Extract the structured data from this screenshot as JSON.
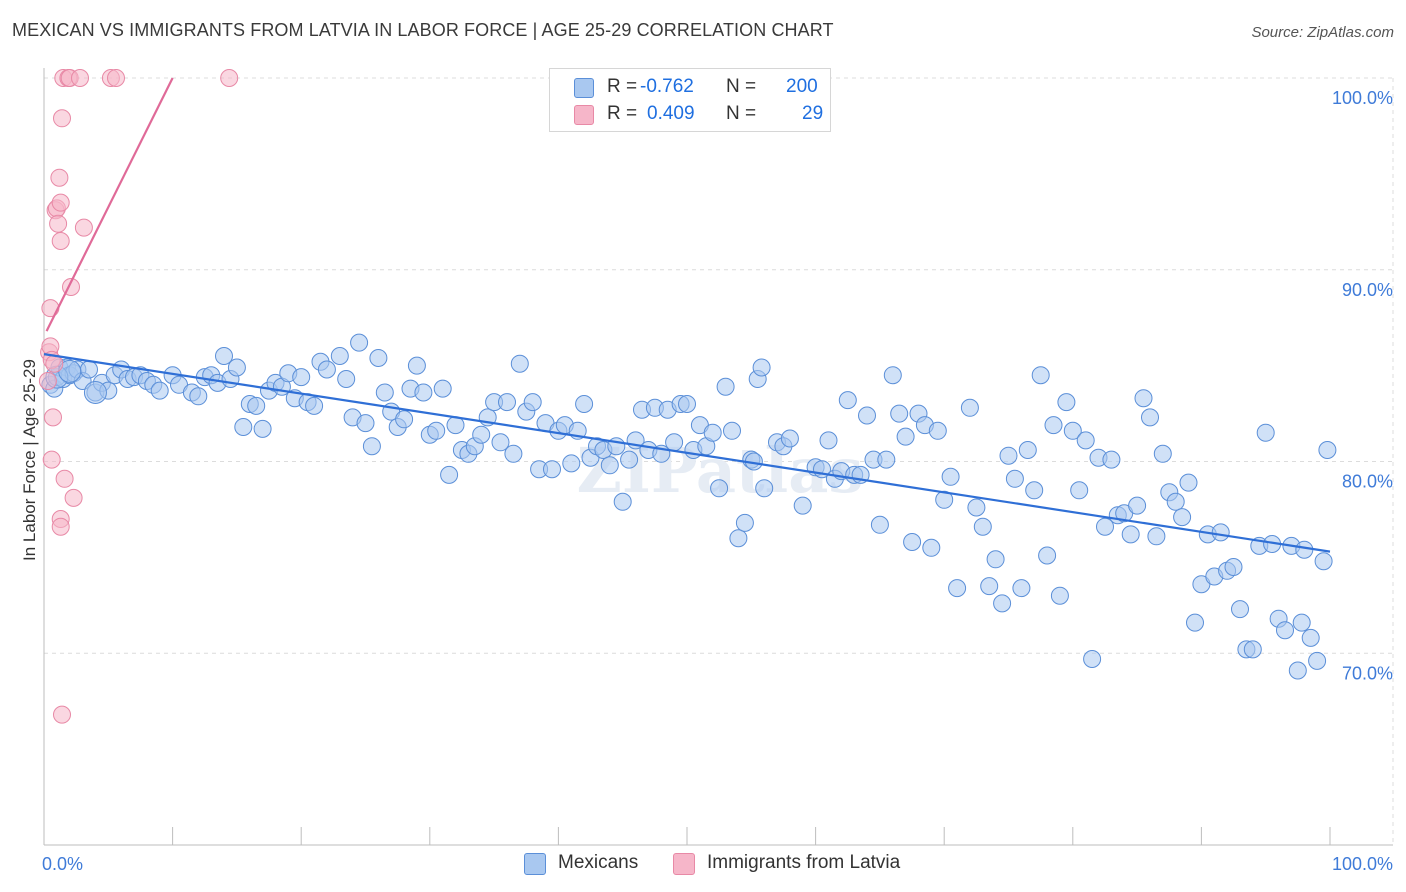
{
  "title": "MEXICAN VS IMMIGRANTS FROM LATVIA IN LABOR FORCE | AGE 25-29 CORRELATION CHART",
  "source": "Source: ZipAtlas.com",
  "watermark": "ZIPatlas",
  "legend_top": {
    "rows": [
      {
        "r_label": "R =",
        "r_value": "-0.762",
        "n_label": "N =",
        "n_value": "200"
      },
      {
        "r_label": "R =",
        "r_value": "0.409",
        "n_label": "N =",
        "n_value": "29"
      }
    ]
  },
  "legend_bottom": [
    "Mexicans",
    "Immigrants from Latvia"
  ],
  "colors": {
    "blue_fill": "#a9c8f0",
    "blue_stroke": "#5b8fd8",
    "blue_line": "#2f6fd6",
    "pink_fill": "#f6b6c9",
    "pink_stroke": "#e889a6",
    "pink_line": "#e06a98",
    "tick_label": "#3f7bd8"
  },
  "chart_data": {
    "type": "scatter",
    "title": "MEXICAN VS IMMIGRANTS FROM LATVIA IN LABOR FORCE | AGE 25-29 CORRELATION CHART",
    "xlabel": "",
    "ylabel": "In Labor Force | Age 25-29",
    "xlim": [
      0,
      100
    ],
    "ylim": [
      60,
      100
    ],
    "x_tick_labels": [
      "0.0%",
      "100.0%"
    ],
    "y_ticks": [
      70,
      80,
      90,
      100
    ],
    "y_tick_labels": [
      "70.0%",
      "80.0%",
      "90.0%",
      "100.0%"
    ],
    "grid": true,
    "legend_position": "top-center",
    "series": [
      {
        "name": "Mexicans",
        "color": "#a9c8f0",
        "r": -0.762,
        "n": 200,
        "trend": {
          "x": [
            0,
            100
          ],
          "y": [
            85.6,
            75.3
          ]
        },
        "points": [
          [
            0.5,
            84.0
          ],
          [
            0.8,
            83.8
          ],
          [
            1.0,
            84.4
          ],
          [
            1.2,
            84.9
          ],
          [
            1.5,
            84.3
          ],
          [
            1.8,
            84.9
          ],
          [
            2.0,
            84.5
          ],
          [
            2.3,
            84.6
          ],
          [
            2.6,
            84.8
          ],
          [
            3.0,
            84.2
          ],
          [
            3.5,
            84.8
          ],
          [
            4.0,
            83.6
          ],
          [
            4.5,
            84.1
          ],
          [
            5.0,
            83.7
          ],
          [
            5.5,
            84.5
          ],
          [
            6.0,
            84.8
          ],
          [
            6.5,
            84.3
          ],
          [
            7.0,
            84.4
          ],
          [
            7.5,
            84.5
          ],
          [
            8.0,
            84.2
          ],
          [
            8.5,
            84.0
          ],
          [
            9.0,
            83.7
          ],
          [
            10.0,
            84.5
          ],
          [
            10.5,
            84.0
          ],
          [
            11.5,
            83.6
          ],
          [
            12.0,
            83.4
          ],
          [
            12.5,
            84.4
          ],
          [
            13.0,
            84.5
          ],
          [
            13.5,
            84.1
          ],
          [
            14.0,
            85.5
          ],
          [
            14.5,
            84.3
          ],
          [
            15.0,
            84.9
          ],
          [
            15.5,
            81.8
          ],
          [
            16.0,
            83.0
          ],
          [
            16.5,
            82.9
          ],
          [
            17.0,
            81.7
          ],
          [
            17.5,
            83.7
          ],
          [
            18.0,
            84.1
          ],
          [
            18.5,
            83.9
          ],
          [
            19.0,
            84.6
          ],
          [
            19.5,
            83.3
          ],
          [
            20.0,
            84.4
          ],
          [
            20.5,
            83.1
          ],
          [
            21.0,
            82.9
          ],
          [
            21.5,
            85.2
          ],
          [
            22.0,
            84.8
          ],
          [
            23.0,
            85.5
          ],
          [
            23.5,
            84.3
          ],
          [
            24.0,
            82.3
          ],
          [
            24.5,
            86.2
          ],
          [
            25.0,
            82.0
          ],
          [
            25.5,
            80.8
          ],
          [
            26.0,
            85.4
          ],
          [
            26.5,
            83.6
          ],
          [
            27.0,
            82.6
          ],
          [
            27.5,
            81.8
          ],
          [
            28.0,
            82.2
          ],
          [
            28.5,
            83.8
          ],
          [
            29.0,
            85.0
          ],
          [
            29.5,
            83.6
          ],
          [
            30.0,
            81.4
          ],
          [
            30.5,
            81.6
          ],
          [
            31.0,
            83.8
          ],
          [
            31.5,
            79.3
          ],
          [
            32.0,
            81.9
          ],
          [
            32.5,
            80.6
          ],
          [
            33.0,
            80.4
          ],
          [
            33.5,
            80.8
          ],
          [
            34.0,
            81.4
          ],
          [
            34.5,
            82.3
          ],
          [
            35.0,
            83.1
          ],
          [
            35.5,
            81.0
          ],
          [
            36.0,
            83.1
          ],
          [
            36.5,
            80.4
          ],
          [
            37.0,
            85.1
          ],
          [
            37.5,
            82.6
          ],
          [
            38.0,
            83.1
          ],
          [
            38.5,
            79.6
          ],
          [
            39.0,
            82.0
          ],
          [
            39.5,
            79.6
          ],
          [
            40.0,
            81.6
          ],
          [
            40.5,
            81.9
          ],
          [
            41.0,
            79.9
          ],
          [
            41.5,
            81.6
          ],
          [
            42.0,
            83.0
          ],
          [
            42.5,
            80.2
          ],
          [
            43.0,
            80.8
          ],
          [
            43.5,
            80.6
          ],
          [
            44.0,
            79.8
          ],
          [
            44.5,
            80.8
          ],
          [
            45.0,
            77.9
          ],
          [
            45.5,
            80.1
          ],
          [
            46.0,
            81.1
          ],
          [
            46.5,
            82.7
          ],
          [
            47.0,
            80.6
          ],
          [
            47.5,
            82.8
          ],
          [
            48.0,
            80.4
          ],
          [
            48.5,
            82.7
          ],
          [
            49.0,
            81.0
          ],
          [
            49.5,
            83.0
          ],
          [
            50.0,
            83.0
          ],
          [
            50.5,
            80.6
          ],
          [
            51.0,
            81.9
          ],
          [
            51.5,
            80.8
          ],
          [
            52.0,
            81.5
          ],
          [
            52.5,
            78.6
          ],
          [
            53.0,
            83.9
          ],
          [
            53.5,
            81.6
          ],
          [
            54.0,
            76.0
          ],
          [
            54.5,
            76.8
          ],
          [
            55.0,
            80.1
          ],
          [
            55.5,
            84.3
          ],
          [
            55.8,
            84.9
          ],
          [
            56.0,
            78.6
          ],
          [
            57.0,
            81.0
          ],
          [
            57.5,
            80.8
          ],
          [
            58.0,
            81.2
          ],
          [
            59.0,
            77.7
          ],
          [
            60.0,
            79.7
          ],
          [
            60.5,
            79.6
          ],
          [
            61.0,
            81.1
          ],
          [
            61.5,
            79.1
          ],
          [
            62.0,
            79.5
          ],
          [
            62.5,
            83.2
          ],
          [
            63.0,
            79.3
          ],
          [
            63.5,
            79.3
          ],
          [
            64.0,
            82.4
          ],
          [
            64.5,
            80.1
          ],
          [
            65.0,
            76.7
          ],
          [
            65.5,
            80.1
          ],
          [
            66.0,
            84.5
          ],
          [
            66.5,
            82.5
          ],
          [
            67.0,
            81.3
          ],
          [
            67.5,
            75.8
          ],
          [
            68.0,
            82.5
          ],
          [
            68.5,
            81.9
          ],
          [
            69.0,
            75.5
          ],
          [
            69.5,
            81.6
          ],
          [
            70.0,
            78.0
          ],
          [
            70.5,
            79.2
          ],
          [
            71.0,
            73.4
          ],
          [
            72.0,
            82.8
          ],
          [
            72.5,
            77.6
          ],
          [
            73.0,
            76.6
          ],
          [
            73.5,
            73.5
          ],
          [
            74.0,
            74.9
          ],
          [
            74.5,
            72.6
          ],
          [
            75.0,
            80.3
          ],
          [
            75.5,
            79.1
          ],
          [
            76.0,
            73.4
          ],
          [
            76.5,
            80.6
          ],
          [
            77.0,
            78.5
          ],
          [
            77.5,
            84.5
          ],
          [
            78.0,
            75.1
          ],
          [
            78.5,
            81.9
          ],
          [
            79.0,
            73.0
          ],
          [
            79.5,
            83.1
          ],
          [
            80.0,
            81.6
          ],
          [
            80.5,
            78.5
          ],
          [
            81.0,
            81.1
          ],
          [
            81.5,
            69.7
          ],
          [
            82.0,
            80.2
          ],
          [
            82.5,
            76.6
          ],
          [
            83.0,
            80.1
          ],
          [
            83.5,
            77.2
          ],
          [
            84.0,
            77.3
          ],
          [
            84.5,
            76.2
          ],
          [
            85.0,
            77.7
          ],
          [
            85.5,
            83.3
          ],
          [
            86.0,
            82.3
          ],
          [
            86.5,
            76.1
          ],
          [
            87.0,
            80.4
          ],
          [
            87.5,
            78.4
          ],
          [
            88.0,
            77.9
          ],
          [
            88.5,
            77.1
          ],
          [
            89.0,
            78.9
          ],
          [
            89.5,
            71.6
          ],
          [
            90.0,
            73.6
          ],
          [
            90.5,
            76.2
          ],
          [
            91.0,
            74.0
          ],
          [
            91.5,
            76.3
          ],
          [
            92.0,
            74.3
          ],
          [
            92.5,
            74.5
          ],
          [
            93.0,
            72.3
          ],
          [
            93.5,
            70.2
          ],
          [
            94.0,
            70.2
          ],
          [
            94.5,
            75.6
          ],
          [
            95.0,
            81.5
          ],
          [
            95.5,
            75.7
          ],
          [
            96.0,
            71.8
          ],
          [
            96.5,
            71.2
          ],
          [
            97.0,
            75.6
          ],
          [
            97.5,
            69.1
          ],
          [
            97.8,
            71.6
          ],
          [
            98.0,
            75.4
          ],
          [
            98.5,
            70.8
          ],
          [
            99.0,
            69.6
          ],
          [
            99.5,
            74.8
          ],
          [
            99.8,
            80.6
          ],
          [
            55.2,
            80.0
          ]
        ]
      },
      {
        "name": "Immigrants from Latvia",
        "color": "#f6b6c9",
        "r": 0.409,
        "n": 29,
        "trend": {
          "x": [
            0.2,
            10.0
          ],
          "y": [
            86.8,
            100.0
          ]
        },
        "points": [
          [
            0.3,
            84.2
          ],
          [
            0.4,
            85.7
          ],
          [
            0.5,
            86.0
          ],
          [
            0.6,
            85.3
          ],
          [
            0.5,
            88.0
          ],
          [
            0.7,
            82.3
          ],
          [
            0.6,
            80.1
          ],
          [
            0.8,
            85.1
          ],
          [
            0.9,
            93.1
          ],
          [
            1.0,
            93.2
          ],
          [
            1.1,
            92.4
          ],
          [
            1.2,
            94.8
          ],
          [
            1.3,
            93.5
          ],
          [
            1.3,
            91.5
          ],
          [
            1.3,
            77.0
          ],
          [
            1.3,
            76.6
          ],
          [
            1.4,
            66.8
          ],
          [
            1.4,
            97.9
          ],
          [
            1.5,
            100.0
          ],
          [
            1.6,
            79.1
          ],
          [
            1.9,
            100.0
          ],
          [
            2.0,
            100.0
          ],
          [
            2.1,
            89.1
          ],
          [
            2.3,
            78.1
          ],
          [
            2.8,
            100.0
          ],
          [
            3.1,
            92.2
          ],
          [
            5.2,
            100.0
          ],
          [
            5.6,
            100.0
          ],
          [
            14.4,
            100.0
          ]
        ]
      }
    ]
  }
}
